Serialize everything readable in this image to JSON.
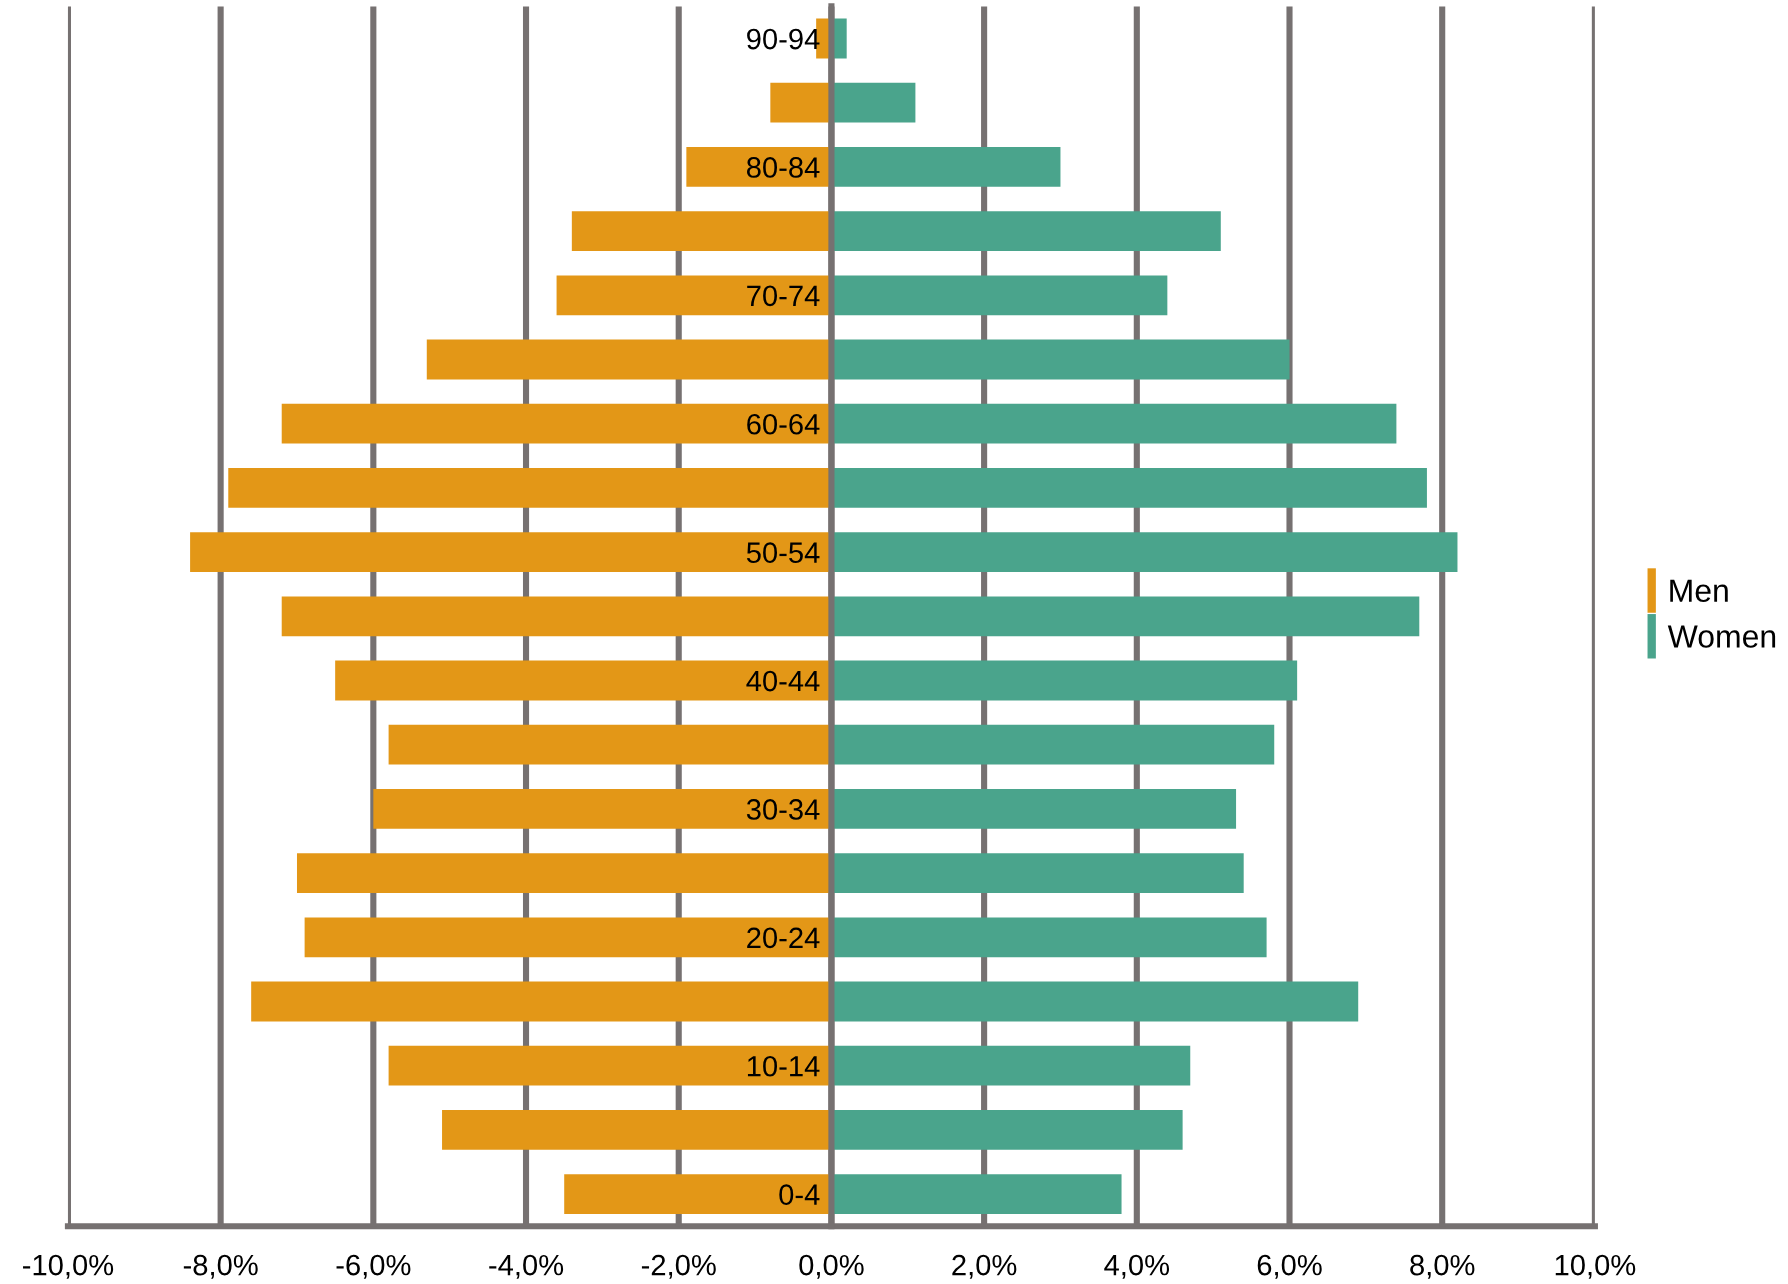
{
  "chart_data": {
    "type": "bar",
    "orientation": "horizontal",
    "categories": [
      "90-94",
      null,
      "80-84",
      null,
      "70-74",
      null,
      "60-64",
      null,
      "50-54",
      null,
      "40-44",
      null,
      "30-34",
      null,
      "20-24",
      null,
      "10-14",
      null,
      "0-4"
    ],
    "series": [
      {
        "name": "Men",
        "color": "#e39717",
        "values": [
          -0.2,
          -0.8,
          -1.9,
          -3.4,
          -3.6,
          -5.3,
          -7.2,
          -7.9,
          -8.4,
          -7.2,
          -6.5,
          -5.8,
          -6.0,
          -7.0,
          -6.9,
          -7.6,
          -5.8,
          -5.1,
          -3.5
        ]
      },
      {
        "name": "Women",
        "color": "#4aa48c",
        "values": [
          0.2,
          1.1,
          3.0,
          5.1,
          4.4,
          6.0,
          7.4,
          7.8,
          8.2,
          7.7,
          6.1,
          5.8,
          5.3,
          5.4,
          5.7,
          6.9,
          4.7,
          4.6,
          3.8
        ]
      }
    ],
    "xlim": [
      -10,
      10
    ],
    "xticks": [
      {
        "value": -10,
        "label": "-10,0%"
      },
      {
        "value": -8,
        "label": "-8,0%"
      },
      {
        "value": -6,
        "label": "-6,0%"
      },
      {
        "value": -4,
        "label": "-4,0%"
      },
      {
        "value": -2,
        "label": "-2,0%"
      },
      {
        "value": 0,
        "label": "0,0%"
      },
      {
        "value": 2,
        "label": "2,0%"
      },
      {
        "value": 4,
        "label": "4,0%"
      },
      {
        "value": 6,
        "label": "6,0%"
      },
      {
        "value": 8,
        "label": "8,0%"
      },
      {
        "value": 10,
        "label": "10,0%"
      }
    ],
    "stacked": true,
    "grid": "x",
    "legend": "right"
  }
}
